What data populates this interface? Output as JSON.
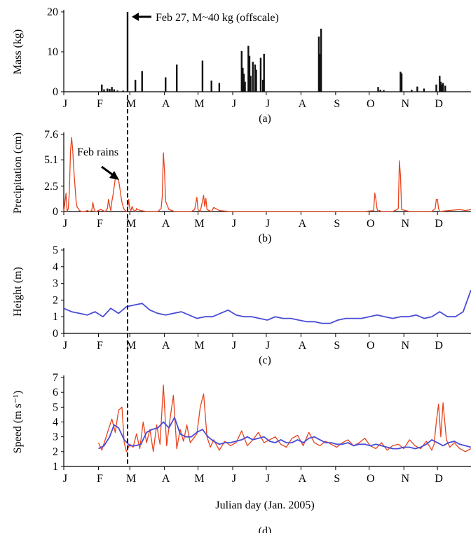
{
  "chart_data": [
    {
      "id": "a",
      "type": "bar",
      "ylabel": "Mass (kg)",
      "panel_label": "(a)",
      "yticks": [
        0,
        10,
        20
      ],
      "ylim": [
        0,
        20
      ],
      "xlim": [
        1,
        365
      ],
      "x_ticks": [
        {
          "day": 1,
          "label": "J"
        },
        {
          "day": 32,
          "label": "F"
        },
        {
          "day": 60,
          "label": "M"
        },
        {
          "day": 91,
          "label": "A"
        },
        {
          "day": 121,
          "label": "M"
        },
        {
          "day": 152,
          "label": "J"
        },
        {
          "day": 182,
          "label": "J"
        },
        {
          "day": 213,
          "label": "A"
        },
        {
          "day": 244,
          "label": "S"
        },
        {
          "day": 274,
          "label": "O"
        },
        {
          "day": 305,
          "label": "N"
        },
        {
          "day": 335,
          "label": "D"
        }
      ],
      "annotation": "Feb 27, M~40 kg (offscale)",
      "bars": [
        {
          "x": 35,
          "y": 1.8
        },
        {
          "x": 37,
          "y": 0.6
        },
        {
          "x": 40,
          "y": 0.8
        },
        {
          "x": 42,
          "y": 0.7
        },
        {
          "x": 44,
          "y": 1.2
        },
        {
          "x": 46,
          "y": 0.6
        },
        {
          "x": 49,
          "y": 0.3
        },
        {
          "x": 54,
          "y": 0.3
        },
        {
          "x": 58,
          "y": 20
        },
        {
          "x": 65,
          "y": 3
        },
        {
          "x": 71,
          "y": 5.2
        },
        {
          "x": 92,
          "y": 3.6
        },
        {
          "x": 102,
          "y": 6.8
        },
        {
          "x": 125,
          "y": 7.8
        },
        {
          "x": 133,
          "y": 2.8
        },
        {
          "x": 140,
          "y": 2.2
        },
        {
          "x": 160,
          "y": 10.2
        },
        {
          "x": 161,
          "y": 6
        },
        {
          "x": 162,
          "y": 4.5
        },
        {
          "x": 163,
          "y": 2.5
        },
        {
          "x": 166,
          "y": 11.5
        },
        {
          "x": 167,
          "y": 9
        },
        {
          "x": 168,
          "y": 4
        },
        {
          "x": 170,
          "y": 7.5
        },
        {
          "x": 172,
          "y": 6.8
        },
        {
          "x": 173,
          "y": 5.5
        },
        {
          "x": 177,
          "y": 8.5
        },
        {
          "x": 179,
          "y": 3
        },
        {
          "x": 180,
          "y": 9.5
        },
        {
          "x": 229,
          "y": 13.8
        },
        {
          "x": 230,
          "y": 9.5
        },
        {
          "x": 231,
          "y": 15.8
        },
        {
          "x": 282,
          "y": 1.2
        },
        {
          "x": 284,
          "y": 0.5
        },
        {
          "x": 287,
          "y": 0.4
        },
        {
          "x": 302,
          "y": 5
        },
        {
          "x": 303,
          "y": 4.6
        },
        {
          "x": 312,
          "y": 0.5
        },
        {
          "x": 317,
          "y": 1.3
        },
        {
          "x": 323,
          "y": 0.8
        },
        {
          "x": 334,
          "y": 1.8
        },
        {
          "x": 337,
          "y": 4
        },
        {
          "x": 338,
          "y": 2.5
        },
        {
          "x": 339,
          "y": 1.8
        },
        {
          "x": 340,
          "y": 2.2
        },
        {
          "x": 342,
          "y": 1.5
        }
      ]
    },
    {
      "id": "b",
      "type": "line",
      "ylabel": "Precipitation (cm)",
      "panel_label": "(b)",
      "yticks": [
        0,
        2.5,
        5.1,
        7.6
      ],
      "ylim": [
        0,
        7.6
      ],
      "xlim": [
        1,
        365
      ],
      "x_ticks": [
        {
          "day": 1,
          "label": "J"
        },
        {
          "day": 32,
          "label": "F"
        },
        {
          "day": 60,
          "label": "M"
        },
        {
          "day": 91,
          "label": "A"
        },
        {
          "day": 121,
          "label": "M"
        },
        {
          "day": 152,
          "label": "J"
        },
        {
          "day": 182,
          "label": "J"
        },
        {
          "day": 213,
          "label": "A"
        },
        {
          "day": 244,
          "label": "S"
        },
        {
          "day": 274,
          "label": "O"
        },
        {
          "day": 305,
          "label": "N"
        },
        {
          "day": 335,
          "label": "D"
        }
      ],
      "annotation": "Feb rains",
      "series": [
        {
          "color": "#e8431c",
          "x": [
            1,
            3,
            4,
            5,
            6,
            7,
            8,
            9,
            10,
            11,
            12,
            13,
            14,
            15,
            17,
            20,
            22,
            24,
            26,
            27,
            28,
            29,
            30,
            34,
            36,
            38,
            40,
            41,
            42,
            43,
            44,
            45,
            46,
            47,
            48,
            49,
            50,
            51,
            52,
            53,
            54,
            55,
            56,
            57,
            58,
            59,
            60,
            61,
            62,
            63,
            64,
            65,
            66,
            67,
            70,
            75,
            80,
            85,
            88,
            89,
            90,
            91,
            92,
            95,
            100,
            110,
            115,
            118,
            120,
            121,
            123,
            125,
            126,
            127,
            128,
            129,
            131,
            133,
            135,
            140,
            150,
            160,
            170,
            180,
            190,
            200,
            210,
            220,
            230,
            240,
            250,
            260,
            270,
            278,
            279,
            280,
            281,
            282,
            283,
            285,
            290,
            295,
            299,
            300,
            301,
            302,
            303,
            310,
            320,
            330,
            333,
            334,
            335,
            336,
            337,
            345,
            355,
            360,
            365
          ],
          "y": [
            0,
            1.8,
            0,
            0.3,
            2,
            6,
            7.3,
            6,
            4,
            2.5,
            1,
            0.4,
            0.3,
            0.1,
            0,
            0,
            0.1,
            0,
            0.1,
            0.9,
            0.3,
            0,
            0,
            0.2,
            0.1,
            0,
            0.3,
            1.2,
            0.6,
            0.1,
            1,
            1.6,
            2.4,
            3.2,
            3.4,
            3.3,
            3.1,
            2.4,
            1.6,
            0.9,
            0.5,
            0.2,
            0.1,
            0,
            0.1,
            1.2,
            0.3,
            0.1,
            0.5,
            0.2,
            0.1,
            0,
            0.3,
            0.2,
            0.1,
            0,
            0,
            0,
            0.3,
            1.5,
            5.8,
            4,
            1,
            0.2,
            0,
            0,
            0,
            0.2,
            1.4,
            0.2,
            0,
            1,
            1.6,
            0.5,
            1.3,
            0.2,
            0.1,
            0,
            0.4,
            0.1,
            0,
            0,
            0,
            0,
            0,
            0,
            0,
            0,
            0,
            0,
            0,
            0,
            0,
            0.1,
            1.8,
            1.2,
            0.3,
            0,
            0.1,
            0,
            0,
            0,
            0.2,
            0.3,
            5,
            3.5,
            0.2,
            0,
            0,
            0,
            0.3,
            1.2,
            1.2,
            0.3,
            0,
            0.1,
            0.2,
            0.1,
            0.2
          ]
        }
      ]
    },
    {
      "id": "c",
      "type": "line",
      "ylabel": "Height (m)",
      "panel_label": "(c)",
      "yticks": [
        0,
        1,
        2,
        3,
        4,
        5
      ],
      "ylim": [
        0,
        5
      ],
      "xlim": [
        1,
        365
      ],
      "x_ticks": [
        {
          "day": 1,
          "label": "J"
        },
        {
          "day": 32,
          "label": "F"
        },
        {
          "day": 60,
          "label": "M"
        },
        {
          "day": 91,
          "label": "A"
        },
        {
          "day": 121,
          "label": "M"
        },
        {
          "day": 152,
          "label": "J"
        },
        {
          "day": 182,
          "label": "J"
        },
        {
          "day": 213,
          "label": "A"
        },
        {
          "day": 244,
          "label": "S"
        },
        {
          "day": 274,
          "label": "O"
        },
        {
          "day": 305,
          "label": "N"
        },
        {
          "day": 335,
          "label": "D"
        }
      ],
      "series": [
        {
          "color": "#4a4bd6",
          "x": [
            1,
            8,
            15,
            22,
            29,
            36,
            43,
            50,
            57,
            64,
            71,
            78,
            85,
            92,
            99,
            106,
            113,
            120,
            127,
            134,
            141,
            148,
            155,
            162,
            169,
            176,
            183,
            190,
            197,
            204,
            211,
            218,
            225,
            232,
            239,
            246,
            253,
            260,
            267,
            274,
            281,
            288,
            295,
            302,
            309,
            316,
            323,
            330,
            337,
            344,
            351,
            358,
            365
          ],
          "y": [
            1.5,
            1.3,
            1.2,
            1.1,
            1.3,
            1.0,
            1.5,
            1.2,
            1.6,
            1.7,
            1.8,
            1.4,
            1.2,
            1.1,
            1.2,
            1.3,
            1.1,
            0.9,
            1.0,
            1.0,
            1.2,
            1.4,
            1.1,
            1.0,
            1.0,
            0.9,
            0.8,
            1.0,
            0.9,
            0.9,
            0.8,
            0.7,
            0.7,
            0.6,
            0.6,
            0.8,
            0.9,
            0.9,
            0.9,
            1.0,
            1.1,
            1.0,
            0.9,
            1.0,
            1.0,
            1.1,
            0.9,
            1.0,
            1.3,
            1.0,
            1.0,
            1.3,
            2.6
          ]
        }
      ]
    },
    {
      "id": "d",
      "type": "line",
      "ylabel": "Speed (m s⁻¹)",
      "panel_label": "(d)",
      "xlabel": "Julian day (Jan. 2005)",
      "yticks": [
        1,
        2,
        3,
        4,
        5,
        6,
        7
      ],
      "ylim": [
        1,
        7
      ],
      "xlim": [
        1,
        365
      ],
      "x_ticks": [
        {
          "day": 1,
          "label": "J"
        },
        {
          "day": 32,
          "label": "F"
        },
        {
          "day": 60,
          "label": "M"
        },
        {
          "day": 91,
          "label": "A"
        },
        {
          "day": 121,
          "label": "M"
        },
        {
          "day": 152,
          "label": "J"
        },
        {
          "day": 182,
          "label": "J"
        },
        {
          "day": 213,
          "label": "A"
        },
        {
          "day": 244,
          "label": "S"
        },
        {
          "day": 274,
          "label": "O"
        },
        {
          "day": 305,
          "label": "N"
        },
        {
          "day": 335,
          "label": "D"
        }
      ],
      "series": [
        {
          "color": "#e8431c",
          "x": [
            32,
            35,
            38,
            41,
            44,
            47,
            50,
            53,
            55,
            57,
            60,
            63,
            66,
            69,
            72,
            75,
            78,
            81,
            84,
            87,
            90,
            93,
            96,
            99,
            102,
            105,
            108,
            111,
            114,
            117,
            120,
            123,
            126,
            129,
            132,
            135,
            140,
            145,
            150,
            155,
            160,
            165,
            170,
            175,
            180,
            185,
            190,
            195,
            200,
            205,
            210,
            215,
            220,
            225,
            230,
            235,
            240,
            245,
            250,
            255,
            260,
            265,
            270,
            275,
            280,
            285,
            290,
            295,
            300,
            305,
            310,
            315,
            320,
            325,
            330,
            332,
            334,
            336,
            338,
            340,
            343,
            346,
            350,
            355,
            360,
            365
          ],
          "y": [
            2.6,
            2.1,
            2.8,
            3.5,
            4.2,
            3.3,
            4.8,
            5.0,
            2.6,
            2.0,
            2.5,
            2.3,
            3.2,
            2.2,
            4.0,
            2.6,
            3.5,
            2.0,
            3.8,
            2.5,
            6.5,
            2.4,
            4.2,
            5.8,
            2.2,
            3.5,
            2.7,
            3.8,
            2.6,
            2.9,
            3.2,
            5.0,
            5.9,
            3.0,
            2.3,
            2.8,
            2.1,
            2.7,
            2.4,
            2.6,
            3.4,
            2.4,
            2.8,
            3.3,
            2.6,
            2.8,
            3.0,
            2.5,
            2.3,
            2.9,
            3.1,
            2.4,
            3.3,
            2.6,
            2.4,
            2.7,
            2.5,
            2.3,
            2.6,
            2.8,
            2.4,
            2.6,
            2.9,
            2.4,
            2.2,
            2.6,
            2.1,
            2.4,
            2.5,
            2.2,
            2.8,
            2.4,
            2.2,
            2.7,
            2.1,
            2.5,
            4.0,
            5.2,
            3.0,
            5.3,
            2.8,
            2.3,
            2.6,
            2.2,
            2.0,
            2.2
          ]
        },
        {
          "color": "#4a4bd6",
          "x": [
            32,
            37,
            42,
            46,
            50,
            55,
            60,
            65,
            70,
            75,
            80,
            85,
            90,
            95,
            100,
            105,
            110,
            115,
            120,
            125,
            130,
            135,
            140,
            145,
            150,
            155,
            160,
            165,
            170,
            175,
            180,
            185,
            190,
            195,
            200,
            205,
            210,
            215,
            220,
            225,
            230,
            235,
            240,
            245,
            250,
            255,
            260,
            265,
            270,
            275,
            280,
            285,
            290,
            295,
            300,
            305,
            310,
            315,
            320,
            325,
            330,
            335,
            340,
            345,
            350,
            355,
            360,
            365
          ],
          "y": [
            2.2,
            2.4,
            3.0,
            3.8,
            3.6,
            2.8,
            2.4,
            2.4,
            2.5,
            3.3,
            3.5,
            3.6,
            4.0,
            3.6,
            4.3,
            3.2,
            3.0,
            3.0,
            3.3,
            3.5,
            3.0,
            2.7,
            2.5,
            2.6,
            2.6,
            2.7,
            2.8,
            3.0,
            2.8,
            2.9,
            3.0,
            2.7,
            2.6,
            2.8,
            2.6,
            2.6,
            2.8,
            2.6,
            2.9,
            3.0,
            2.8,
            2.6,
            2.6,
            2.5,
            2.5,
            2.6,
            2.4,
            2.5,
            2.5,
            2.4,
            2.5,
            2.4,
            2.3,
            2.2,
            2.2,
            2.3,
            2.3,
            2.2,
            2.3,
            2.5,
            2.8,
            2.6,
            2.4,
            2.6,
            2.7,
            2.5,
            2.4,
            2.3
          ]
        }
      ]
    }
  ],
  "marker_day": 58
}
